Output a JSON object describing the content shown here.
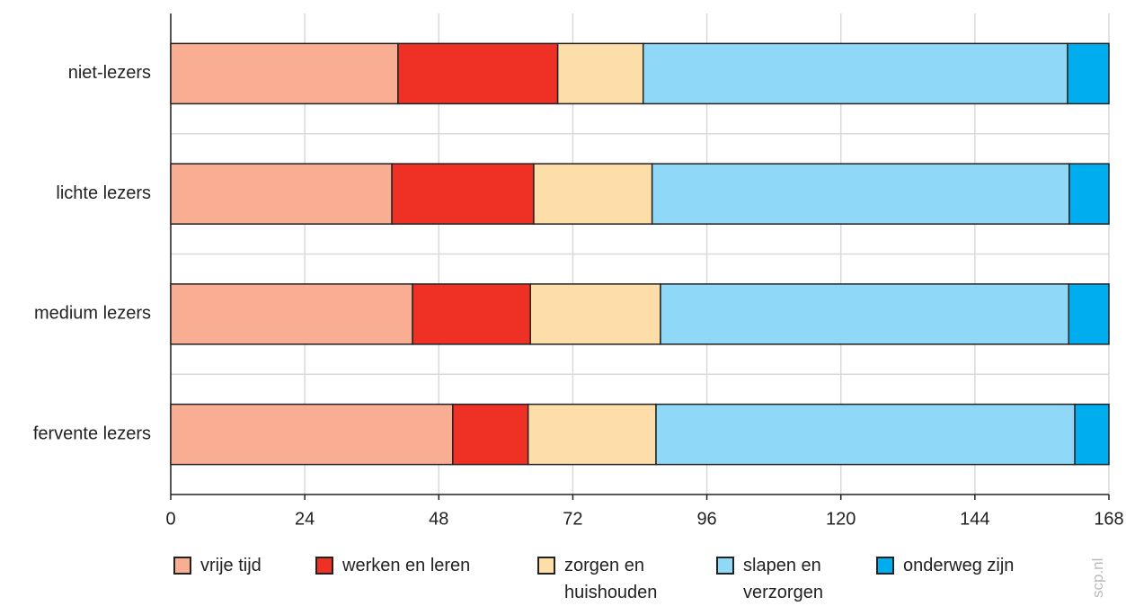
{
  "chart_data": {
    "type": "stacked-bar-horizontal",
    "categories": [
      "niet-lezers",
      "lichte lezers",
      "medium lezers",
      "fervente lezers"
    ],
    "series": [
      {
        "name": "vrije tijd",
        "color": "#f9ae94",
        "values": [
          40.7,
          39.6,
          43.3,
          50.5
        ]
      },
      {
        "name": "werken en leren",
        "color": "#ee3124",
        "values": [
          28.6,
          25.4,
          21.1,
          13.5
        ]
      },
      {
        "name": "zorgen en huishouden",
        "color": "#fedea8",
        "values": [
          15.3,
          21.2,
          23.3,
          22.9
        ]
      },
      {
        "name": "slapen en verzorgen",
        "color": "#8fd8f8",
        "values": [
          76.0,
          74.7,
          73.1,
          75.0
        ]
      },
      {
        "name": "onderweg zijn",
        "color": "#00aeef",
        "values": [
          7.4,
          7.1,
          7.2,
          6.1
        ]
      }
    ],
    "xlim": [
      0,
      168
    ],
    "xticks": [
      0,
      24,
      48,
      72,
      96,
      120,
      144,
      168
    ],
    "grid": true,
    "legend": "bottom",
    "watermark": "scp.nl"
  }
}
